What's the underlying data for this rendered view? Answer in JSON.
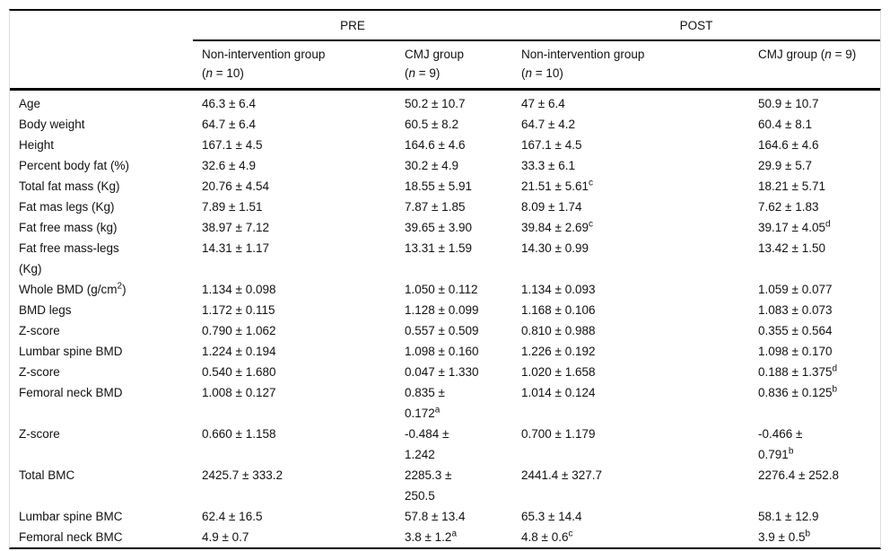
{
  "table": {
    "group_headers": [
      "PRE",
      "POST"
    ],
    "col_headers": [
      "Non-intervention group\n(*n* = 10)",
      "CMJ group\n(*n* = 9)",
      "Non-intervention group\n(*n* = 10)",
      "CMJ group (*n* = 9)"
    ],
    "rows": [
      {
        "label": "Age",
        "values": [
          "46.3 ± 6.4",
          "50.2 ± 10.7",
          "47 ± 6.4",
          "50.9 ± 10.7"
        ]
      },
      {
        "label": "Body weight",
        "values": [
          "64.7 ± 6.4",
          "60.5 ± 8.2",
          "64.7 ± 4.2",
          "60.4 ± 8.1"
        ]
      },
      {
        "label": "Height",
        "values": [
          "167.1 ± 4.5",
          "164.6 ± 4.6",
          "167.1 ± 4.5",
          "164.6 ± 4.6"
        ]
      },
      {
        "label": "Percent body fat (%)",
        "values": [
          "32.6 ± 4.9",
          "30.2 ± 4.9",
          "33.3 ± 6.1",
          "29.9 ± 5.7"
        ]
      },
      {
        "label": "Total fat mass (Kg)",
        "values": [
          "20.76 ± 4.54",
          "18.55 ± 5.91",
          "21.51 ± 5.61^c",
          "18.21 ± 5.71"
        ]
      },
      {
        "label": "Fat mas legs (Kg)",
        "values": [
          "7.89 ± 1.51",
          "7.87 ± 1.85",
          "8.09 ± 1.74",
          "7.62 ± 1.83"
        ]
      },
      {
        "label": "Fat free mass (kg)",
        "values": [
          "38.97 ± 7.12",
          "39.65 ± 3.90",
          "39.84 ± 2.69^c",
          "39.17 ± 4.05^d"
        ]
      },
      {
        "label": "Fat free mass-legs\n(Kg)",
        "values": [
          "14.31 ± 1.17",
          "13.31 ± 1.59",
          "14.30 ± 0.99",
          "13.42 ± 1.50"
        ]
      },
      {
        "label": "Whole BMD (g/cm^2)",
        "values": [
          "1.134 ± 0.098",
          "1.050 ± 0.112",
          "1.134 ± 0.093",
          "1.059 ± 0.077"
        ]
      },
      {
        "label": "BMD legs",
        "values": [
          "1.172 ± 0.115",
          "1.128 ± 0.099",
          "1.168 ± 0.106",
          "1.083 ± 0.073"
        ]
      },
      {
        "label": "Z-score",
        "values": [
          "0.790 ± 1.062",
          "0.557 ± 0.509",
          "0.810 ± 0.988",
          "0.355 ± 0.564"
        ]
      },
      {
        "label": "Lumbar spine BMD",
        "values": [
          "1.224 ± 0.194",
          "1.098 ± 0.160",
          "1.226 ± 0.192",
          "1.098 ± 0.170"
        ]
      },
      {
        "label": "Z-score",
        "values": [
          "0.540 ± 1.680",
          "0.047 ± 1.330",
          "1.020 ± 1.658",
          "0.188 ± 1.375^d"
        ]
      },
      {
        "label": "Femoral neck BMD",
        "values": [
          "1.008 ± 0.127",
          "0.835 ±\n0.172^a",
          "1.014 ± 0.124",
          "0.836 ± 0.125^b"
        ]
      },
      {
        "label": "Z-score",
        "values": [
          "0.660 ± 1.158",
          "-0.484 ±\n1.242",
          "0.700 ± 1.179",
          "-0.466 ±\n0.791^b"
        ]
      },
      {
        "label": "Total BMC",
        "values": [
          "2425.7 ± 333.2",
          "2285.3 ±\n250.5",
          "2441.4 ± 327.7",
          "2276.4 ± 252.8"
        ]
      },
      {
        "label": "Lumbar spine BMC",
        "values": [
          "62.4 ± 16.5",
          "57.8 ± 13.4",
          "65.3 ± 14.4",
          "58.1 ± 12.9"
        ]
      },
      {
        "label": "Femoral neck BMC",
        "values": [
          "4.9 ± 0.7",
          "3.8 ± 1.2^a",
          "4.8 ± 0.6^c",
          "3.9 ± 0.5^b"
        ]
      }
    ]
  }
}
